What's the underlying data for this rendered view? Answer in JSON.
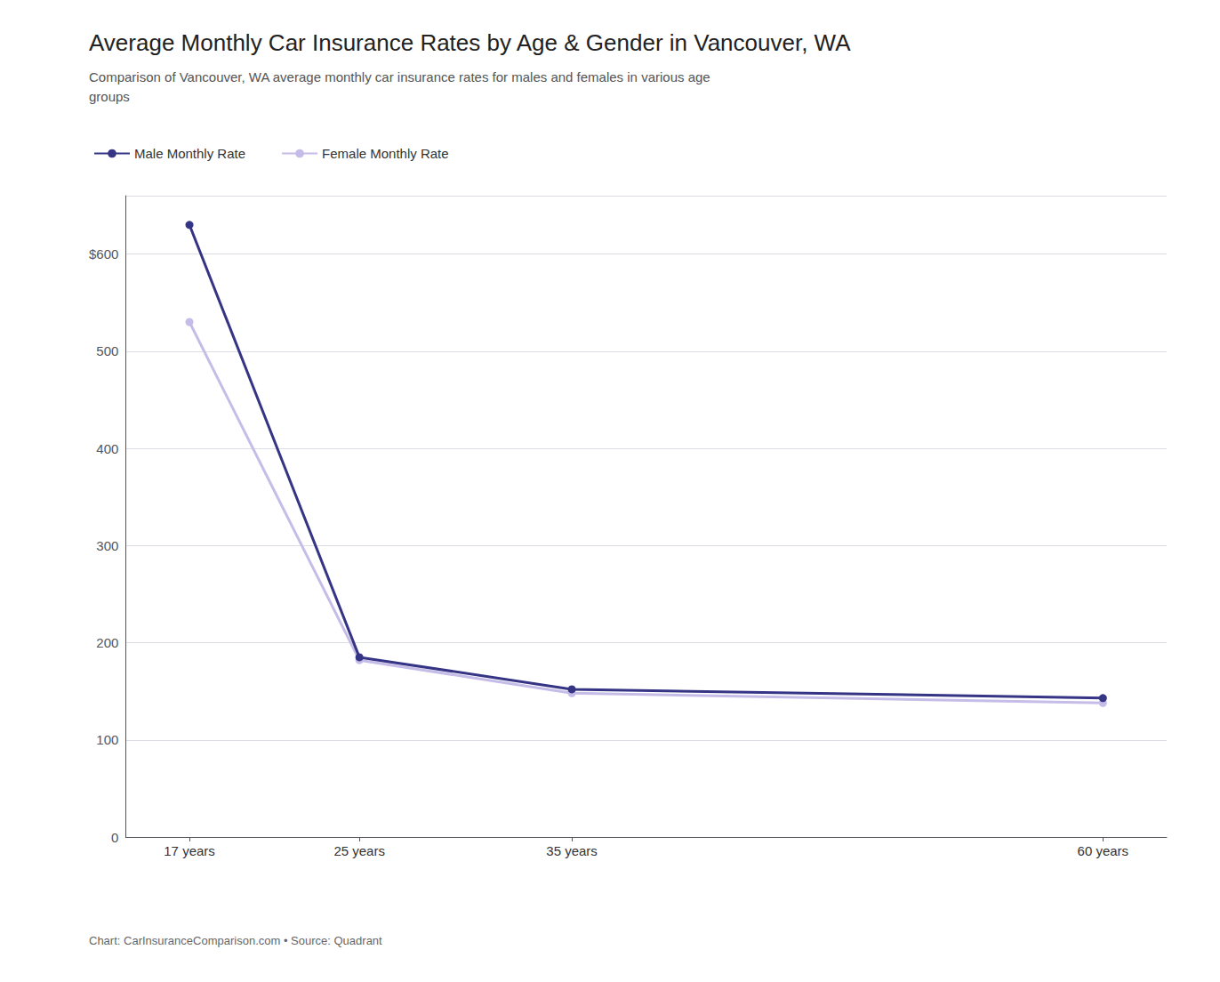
{
  "chart_data": {
    "type": "line",
    "title": "Average Monthly Car Insurance Rates by Age & Gender in Vancouver, WA",
    "subtitle": "Comparison of Vancouver, WA average monthly car insurance rates for males and females in various age\ngroups",
    "annotations": [
      "Chart: CarInsuranceComparison.com • Source: Quadrant"
    ],
    "x": [
      17,
      25,
      35,
      60
    ],
    "xlim": [
      14,
      63
    ],
    "xticks": [
      {
        "value": 17,
        "label": "17 years"
      },
      {
        "value": 25,
        "label": "25 years"
      },
      {
        "value": 35,
        "label": "35 years"
      },
      {
        "value": 60,
        "label": "60 years"
      }
    ],
    "ylim": [
      0,
      660
    ],
    "yticks": [
      0,
      100,
      200,
      300,
      400,
      500,
      {
        "value": 600,
        "label": "$600"
      }
    ],
    "grid": true,
    "legend": "top",
    "marker": "circle",
    "series": [
      {
        "name": "Male Monthly Rate",
        "color": "#363485",
        "values": [
          630,
          185,
          152,
          143
        ]
      },
      {
        "name": "Female Monthly Rate",
        "color": "#c5bce8",
        "values": [
          530,
          182,
          148,
          138
        ]
      }
    ]
  }
}
